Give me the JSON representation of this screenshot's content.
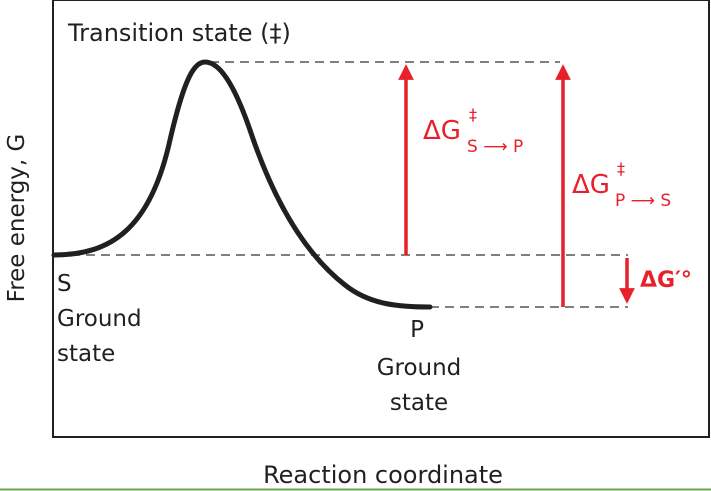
{
  "diagram": {
    "title": "Transition state (‡)",
    "y_axis_label": "Free energy, G",
    "x_axis_label": "Reaction coordinate",
    "substrate": {
      "symbol": "S",
      "line1": "Ground",
      "line2": "state"
    },
    "product": {
      "symbol": "P",
      "line1": "Ground",
      "line2": "state"
    },
    "barrier_forward": {
      "delta": "ΔG",
      "dagger": "‡",
      "subscript": "S ⟶ P"
    },
    "barrier_reverse": {
      "delta": "ΔG",
      "dagger": "‡",
      "subscript": "P ⟶ S"
    },
    "standard_free_energy": {
      "label": "ΔG′°"
    },
    "colors": {
      "curve": "#231f20",
      "arrows": "#e8202a",
      "dashes": "#555555",
      "footer_line": "#6aa84f"
    }
  }
}
